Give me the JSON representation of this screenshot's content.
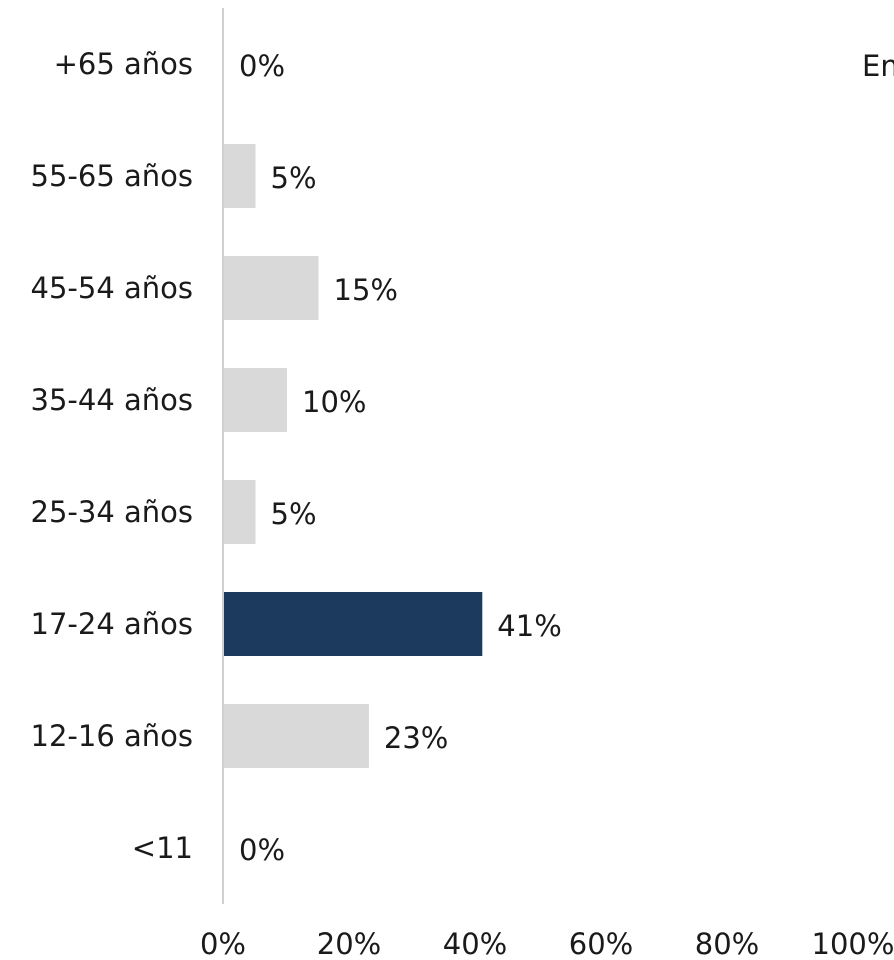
{
  "chart_data": {
    "type": "bar",
    "orientation": "horizontal",
    "categories": [
      "+65 años",
      "55-65 años",
      "45-54 años",
      "35-44 años",
      "25-34 años",
      "17-24 años",
      "12-16 años",
      "<11"
    ],
    "values": [
      0,
      5,
      15,
      10,
      5,
      41,
      23,
      0
    ],
    "value_labels": [
      "0%",
      "5%",
      "15%",
      "10%",
      "5%",
      "41%",
      "23%",
      "0%"
    ],
    "highlight_category": "17-24 años",
    "xlim": [
      0,
      100
    ],
    "xticks": [
      0,
      20,
      40,
      60,
      80,
      100
    ],
    "xtick_labels": [
      "0%",
      "20%",
      "40%",
      "60%",
      "80%",
      "100%"
    ],
    "grid": false,
    "colors": {
      "default_bar": "#d9d9d9",
      "highlight_bar": "#1b3a5e",
      "axis": "#d0d0d0"
    }
  },
  "corner_text": "En"
}
